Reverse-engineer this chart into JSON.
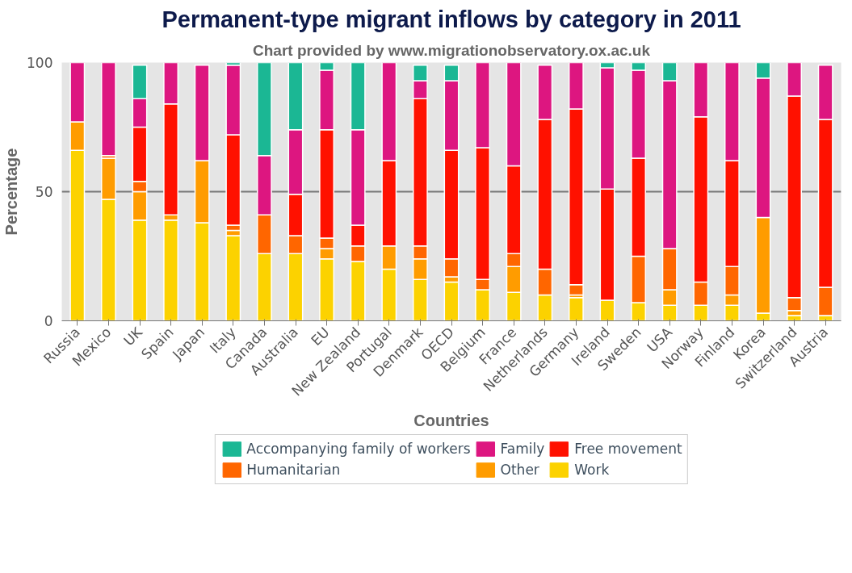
{
  "chart_data": {
    "type": "bar",
    "stacked": true,
    "title": "Permanent-type migrant inflows by category in 2011",
    "subtitle": "Chart provided by www.migrationobservatory.ox.ac.uk",
    "xlabel": "Countries",
    "ylabel": "Percentage",
    "categories": [
      "Russia",
      "Mexico",
      "UK",
      "Spain",
      "Japan",
      "Italy",
      "Canada",
      "Australia",
      "EU",
      "New Zealand",
      "Portugal",
      "Denmark",
      "OECD",
      "Belgium",
      "France",
      "Netherlands",
      "Germany",
      "Ireland",
      "Sweden",
      "USA",
      "Norway",
      "Finland",
      "Korea",
      "Switzerland",
      "Austria"
    ],
    "series": [
      {
        "name": "Work",
        "color": "#fcd200",
        "values": [
          66,
          47,
          39,
          39,
          38,
          33,
          26,
          26,
          24,
          23,
          20,
          16,
          15,
          12,
          11,
          10,
          9,
          8,
          7,
          6,
          6,
          6,
          3,
          2,
          2
        ]
      },
      {
        "name": "Other",
        "color": "#ff9c00",
        "values": [
          11,
          16,
          11,
          2,
          24,
          2,
          0,
          0,
          4,
          0,
          9,
          8,
          2,
          0,
          10,
          0,
          1,
          0,
          0,
          6,
          0,
          4,
          37,
          2,
          0
        ]
      },
      {
        "name": "Humanitarian",
        "color": "#ff6600",
        "values": [
          0,
          1,
          4,
          0,
          0,
          2,
          15,
          7,
          4,
          6,
          0,
          5,
          7,
          4,
          5,
          10,
          4,
          0,
          18,
          16,
          9,
          11,
          0,
          5,
          11
        ]
      },
      {
        "name": "Free movement",
        "color": "#ff1100",
        "values": [
          0,
          0,
          21,
          43,
          0,
          35,
          0,
          16,
          42,
          8,
          33,
          57,
          42,
          51,
          34,
          58,
          68,
          43,
          38,
          0,
          64,
          41,
          0,
          78,
          65
        ]
      },
      {
        "name": "Family",
        "color": "#dd1680",
        "values": [
          23,
          36,
          11,
          16,
          37,
          27,
          23,
          25,
          23,
          37,
          38,
          7,
          27,
          33,
          40,
          21,
          18,
          47,
          34,
          65,
          21,
          38,
          54,
          13,
          21
        ]
      },
      {
        "name": "Accompanying family of workers",
        "color": "#1bb794",
        "values": [
          0,
          0,
          13,
          0,
          0,
          1,
          36,
          26,
          3,
          26,
          0,
          6,
          6,
          0,
          0,
          0,
          0,
          2,
          3,
          7,
          0,
          0,
          6,
          0,
          0
        ]
      }
    ],
    "ylim": [
      0,
      100
    ],
    "yticks": [
      0,
      50,
      100
    ],
    "grid": "y",
    "legend": "bottom"
  }
}
